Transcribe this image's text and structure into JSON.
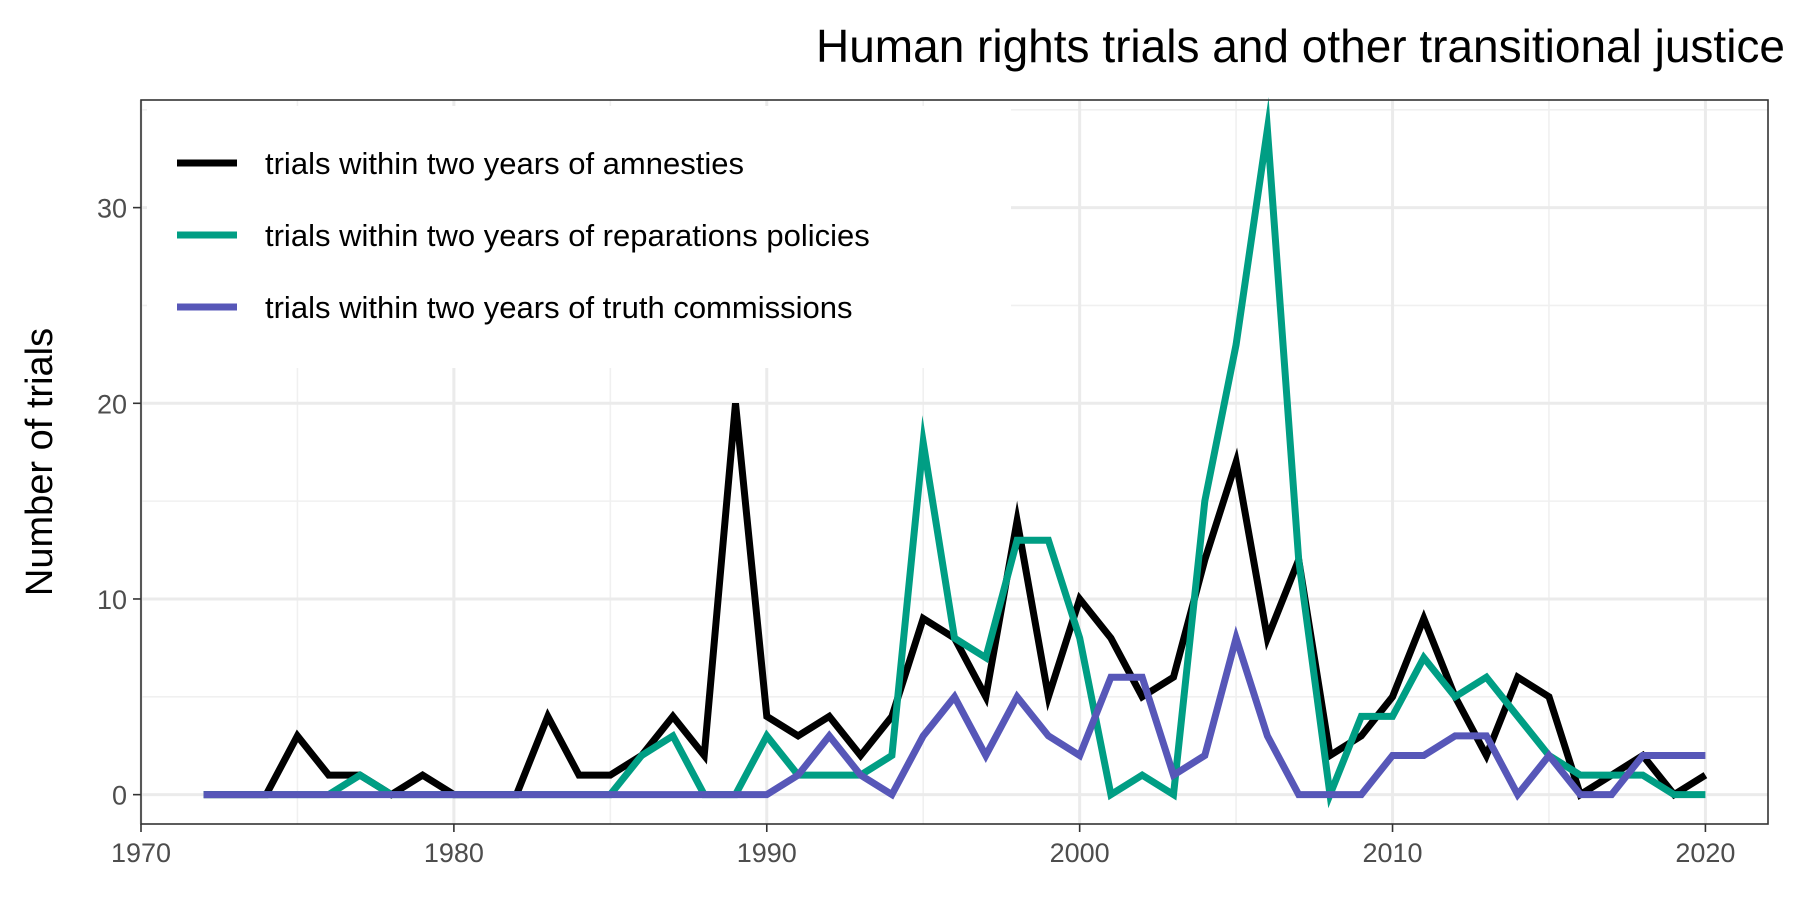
{
  "chart_data": {
    "type": "line",
    "title": "Human rights trials and other transitional justice",
    "xlabel": "",
    "ylabel": "Number of trials",
    "xlim": [
      1970,
      2022
    ],
    "ylim": [
      -1.5,
      35.5
    ],
    "x_ticks": [
      1970,
      1980,
      1990,
      2000,
      2010,
      2020
    ],
    "x_tick_labels": [
      "1970",
      "1980",
      "1990",
      "2000",
      "2010",
      "2020"
    ],
    "y_ticks": [
      0,
      10,
      20,
      30
    ],
    "y_tick_labels": [
      "0",
      "10",
      "20",
      "30"
    ],
    "grid": true,
    "legend_position": "top-left",
    "x": [
      1972,
      1973,
      1974,
      1975,
      1976,
      1977,
      1978,
      1979,
      1980,
      1981,
      1982,
      1983,
      1984,
      1985,
      1986,
      1987,
      1988,
      1989,
      1990,
      1991,
      1992,
      1993,
      1994,
      1995,
      1996,
      1997,
      1998,
      1999,
      2000,
      2001,
      2002,
      2003,
      2004,
      2005,
      2006,
      2007,
      2008,
      2009,
      2010,
      2011,
      2012,
      2013,
      2014,
      2015,
      2016,
      2017,
      2018,
      2019,
      2020
    ],
    "series": [
      {
        "name": "trials within two years of amnesties",
        "color": "#000000",
        "values": [
          0,
          0,
          0,
          3,
          1,
          1,
          0,
          1,
          0,
          0,
          0,
          4,
          1,
          1,
          2,
          4,
          2,
          20,
          4,
          3,
          4,
          2,
          4,
          9,
          8,
          5,
          14,
          5,
          10,
          8,
          5,
          6,
          12,
          17,
          8,
          12,
          2,
          3,
          5,
          9,
          5,
          2,
          6,
          5,
          0,
          1,
          2,
          0,
          1
        ]
      },
      {
        "name": "trials within two years of reparations policies",
        "color": "#009E84",
        "values": [
          0,
          0,
          0,
          0,
          0,
          1,
          0,
          0,
          0,
          0,
          0,
          0,
          0,
          0,
          2,
          3,
          0,
          0,
          3,
          1,
          1,
          1,
          2,
          18,
          8,
          7,
          13,
          13,
          8,
          0,
          1,
          0,
          15,
          23,
          34,
          12,
          0,
          4,
          4,
          7,
          5,
          6,
          4,
          2,
          1,
          1,
          1,
          0,
          0
        ]
      },
      {
        "name": "trials within two years of truth commissions",
        "color": "#5757B8",
        "values": [
          0,
          0,
          0,
          0,
          0,
          0,
          0,
          0,
          0,
          0,
          0,
          0,
          0,
          0,
          0,
          0,
          0,
          0,
          0,
          1,
          3,
          1,
          0,
          3,
          5,
          2,
          5,
          3,
          2,
          6,
          6,
          1,
          2,
          8,
          3,
          0,
          0,
          0,
          2,
          2,
          3,
          3,
          0,
          2,
          0,
          0,
          2,
          2,
          2
        ]
      }
    ]
  }
}
